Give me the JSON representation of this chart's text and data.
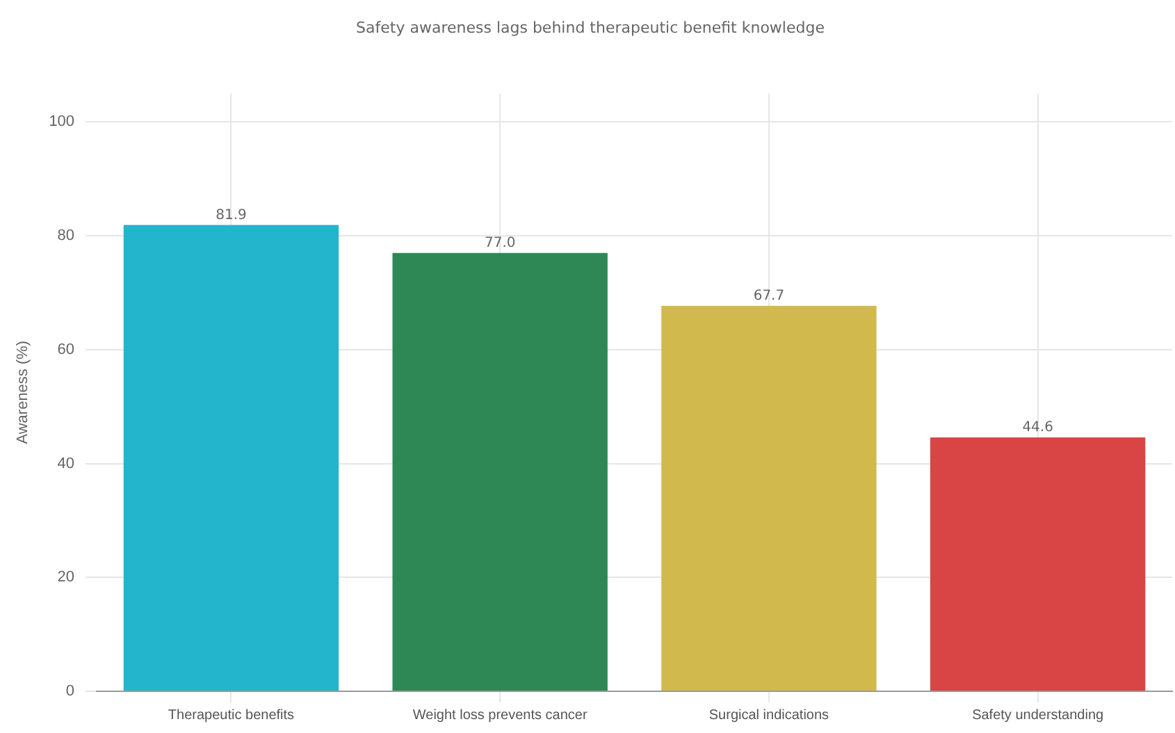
{
  "chart_data": {
    "type": "bar",
    "subtitle": "Safety awareness lags behind therapeutic benefit knowledge",
    "ylabel": "Awareness (%)",
    "categories": [
      "Therapeutic benefits",
      "Weight loss prevents cancer",
      "Surgical indications",
      "Safety understanding"
    ],
    "values": [
      81.9,
      77.0,
      67.7,
      44.6
    ],
    "colors": [
      "#22b5cb",
      "#2e8856",
      "#d2b94e",
      "#d94545"
    ],
    "ylim": [
      0,
      105
    ],
    "yticks": [
      0,
      20,
      40,
      60,
      80,
      100
    ],
    "value_labels": [
      "81.9",
      "77.0",
      "67.7",
      "44.6"
    ],
    "grid": true
  }
}
